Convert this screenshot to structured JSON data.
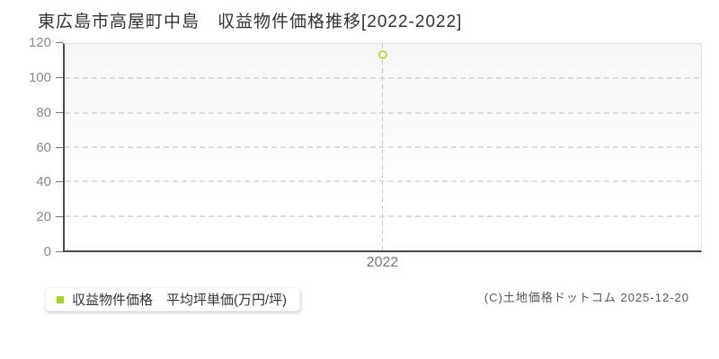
{
  "chart_data": {
    "type": "scatter",
    "title": "東広島市高屋町中島　収益物件価格推移[2022-2022]",
    "categories": [
      "2022"
    ],
    "series": [
      {
        "name": "収益物件価格　平均坪単価(万円/坪)",
        "values": [
          114
        ],
        "color": "#a6d220",
        "marker_stroke": "#bcd64a",
        "marker": "circle-outline"
      }
    ],
    "xlabel": "",
    "ylabel": "",
    "ylim": [
      0,
      120
    ],
    "yticks": [
      0,
      20,
      40,
      60,
      80,
      100,
      120
    ],
    "grid": "horizontal-dashed",
    "guide": "vertical-dashed-per-category",
    "legend_position": "bottom-left"
  },
  "footer": {
    "copyright": "(C)土地価格ドットコム 2025-12-20"
  },
  "colors": {
    "axis": "#4a4a4a",
    "plot_border_light": "#e2e2e2",
    "gridline": "#dedede",
    "tick_label": "#8a8a8a",
    "title_text": "#333333",
    "copyright_text": "#555555",
    "series": "#a6d220"
  }
}
